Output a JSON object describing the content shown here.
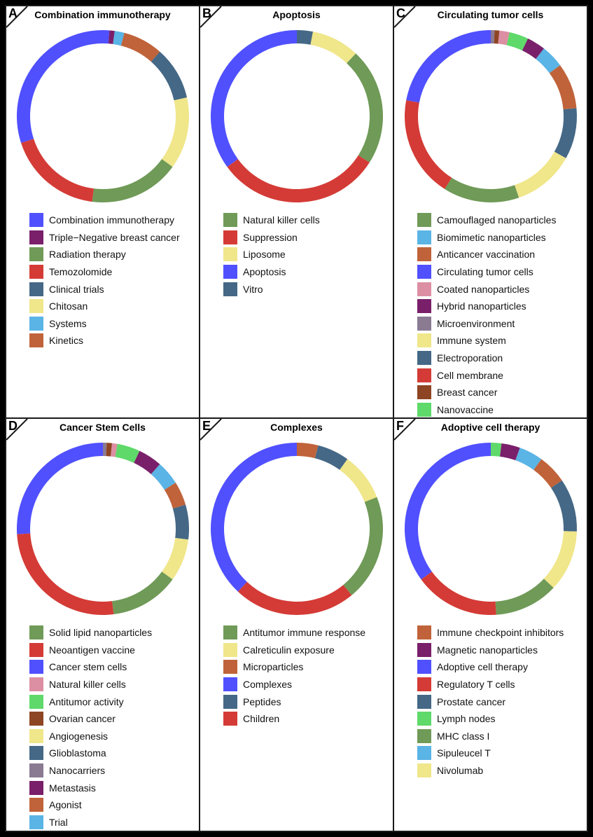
{
  "chart_data": [
    {
      "panel": "A",
      "type": "pie",
      "title": "Combination immunotherapy",
      "slices": [
        {
          "name": "Combination immunotherapy",
          "color": "#5050ff",
          "value": 1.2
        },
        {
          "name": "Triple−Negative breast cancer",
          "color": "#7a1f6a",
          "value": 1
        },
        {
          "name": "Systems",
          "color": "#5ab4e5",
          "value": 1.8
        },
        {
          "name": "Kinetics",
          "color": "#c0633a",
          "value": 7.5
        },
        {
          "name": "Clinical trials",
          "color": "#456886",
          "value": 10
        },
        {
          "name": "Chitosan",
          "color": "#f0e68a",
          "value": 13.5
        },
        {
          "name": "Radiation therapy",
          "color": "#6f9a57",
          "value": 17
        },
        {
          "name": "Temozolomide",
          "color": "#d43b36",
          "value": 18
        },
        {
          "name": "Combination immunotherapy",
          "color": "#5050ff",
          "value": 30
        }
      ],
      "legend": [
        {
          "name": "Combination immunotherapy",
          "color": "#5050ff"
        },
        {
          "name": "Triple−Negative breast cancer",
          "color": "#7a1f6a"
        },
        {
          "name": "Radiation therapy",
          "color": "#6f9a57"
        },
        {
          "name": "Temozolomide",
          "color": "#d43b36"
        },
        {
          "name": "Clinical trials",
          "color": "#456886"
        },
        {
          "name": "Chitosan",
          "color": "#f0e68a"
        },
        {
          "name": "Systems",
          "color": "#5ab4e5"
        },
        {
          "name": "Kinetics",
          "color": "#c0633a"
        }
      ]
    },
    {
      "panel": "B",
      "type": "pie",
      "title": "Apoptosis",
      "slices": [
        {
          "name": "Vitro",
          "color": "#456886",
          "value": 3
        },
        {
          "name": "Liposome",
          "color": "#f0e68a",
          "value": 9
        },
        {
          "name": "Natural killer cells",
          "color": "#6f9a57",
          "value": 22
        },
        {
          "name": "Suppression",
          "color": "#d43b36",
          "value": 31
        },
        {
          "name": "Apoptosis",
          "color": "#5050ff",
          "value": 35
        }
      ],
      "legend": [
        {
          "name": "Natural killer cells",
          "color": "#6f9a57"
        },
        {
          "name": "Suppression",
          "color": "#d43b36"
        },
        {
          "name": "Liposome",
          "color": "#f0e68a"
        },
        {
          "name": "Apoptosis",
          "color": "#5050ff"
        },
        {
          "name": "Vitro",
          "color": "#456886"
        }
      ]
    },
    {
      "panel": "C",
      "type": "pie",
      "title": "Circulating tumor cells",
      "slices": [
        {
          "name": "Microenvironment",
          "color": "#8a7a92",
          "value": 0.7
        },
        {
          "name": "Breast cancer",
          "color": "#8e4523",
          "value": 0.9
        },
        {
          "name": "Coated nanoparticles",
          "color": "#dc8fa3",
          "value": 1.9
        },
        {
          "name": "Nanovaccine",
          "color": "#5ed96a",
          "value": 3.6
        },
        {
          "name": "Hybrid nanoparticles",
          "color": "#7a1f6a",
          "value": 3.5
        },
        {
          "name": "Biomimetic nanoparticles",
          "color": "#5ab4e5",
          "value": 4.3
        },
        {
          "name": "Anticancer vaccination",
          "color": "#c0633a",
          "value": 8.6
        },
        {
          "name": "Electroporation",
          "color": "#456886",
          "value": 9.6
        },
        {
          "name": "Immune system",
          "color": "#f0e68a",
          "value": 11.6
        },
        {
          "name": "Camouflaged nanoparticles",
          "color": "#6f9a57",
          "value": 14.3
        },
        {
          "name": "Cell membrane",
          "color": "#d43b36",
          "value": 19
        },
        {
          "name": "Circulating tumor cells",
          "color": "#5050ff",
          "value": 22
        }
      ],
      "legend": [
        {
          "name": "Camouflaged nanoparticles",
          "color": "#6f9a57"
        },
        {
          "name": "Biomimetic nanoparticles",
          "color": "#5ab4e5"
        },
        {
          "name": "Anticancer vaccination",
          "color": "#c0633a"
        },
        {
          "name": "Circulating tumor cells",
          "color": "#5050ff"
        },
        {
          "name": "Coated nanoparticles",
          "color": "#dc8fa3"
        },
        {
          "name": "Hybrid nanoparticles",
          "color": "#7a1f6a"
        },
        {
          "name": "Microenvironment",
          "color": "#8a7a92"
        },
        {
          "name": "Immune system",
          "color": "#f0e68a"
        },
        {
          "name": "Electroporation",
          "color": "#456886"
        },
        {
          "name": "Cell membrane",
          "color": "#d43b36"
        },
        {
          "name": "Breast cancer",
          "color": "#8e4523"
        },
        {
          "name": "Nanovaccine",
          "color": "#5ed96a"
        }
      ]
    },
    {
      "panel": "D",
      "type": "pie",
      "title": "Cancer Stem Cells",
      "slices": [
        {
          "name": "Nanocarriers",
          "color": "#8a7a92",
          "value": 0.7
        },
        {
          "name": "Ovarian cancer",
          "color": "#8e4523",
          "value": 1
        },
        {
          "name": "Natural killer cells",
          "color": "#dc8fa3",
          "value": 1
        },
        {
          "name": "Antitumor activity",
          "color": "#5ed96a",
          "value": 4.3
        },
        {
          "name": "Metastasis",
          "color": "#7a1f6a",
          "value": 4.5
        },
        {
          "name": "Trial",
          "color": "#5ab4e5",
          "value": 4.5
        },
        {
          "name": "Agonist",
          "color": "#c0633a",
          "value": 4.5
        },
        {
          "name": "Glioblastoma",
          "color": "#456886",
          "value": 6.5
        },
        {
          "name": "Angiogenesis",
          "color": "#f0e68a",
          "value": 8
        },
        {
          "name": "Solid lipid nanoparticles",
          "color": "#6f9a57",
          "value": 13
        },
        {
          "name": "Neoantigen vaccine",
          "color": "#d43b36",
          "value": 26
        },
        {
          "name": "Cancer stem cells",
          "color": "#5050ff",
          "value": 26
        }
      ],
      "legend": [
        {
          "name": "Solid lipid nanoparticles",
          "color": "#6f9a57"
        },
        {
          "name": "Neoantigen vaccine",
          "color": "#d43b36"
        },
        {
          "name": "Cancer stem cells",
          "color": "#5050ff"
        },
        {
          "name": "Natural killer cells",
          "color": "#dc8fa3"
        },
        {
          "name": "Antitumor activity",
          "color": "#5ed96a"
        },
        {
          "name": "Ovarian cancer",
          "color": "#8e4523"
        },
        {
          "name": "Angiogenesis",
          "color": "#f0e68a"
        },
        {
          "name": "Glioblastoma",
          "color": "#456886"
        },
        {
          "name": "Nanocarriers",
          "color": "#8a7a92"
        },
        {
          "name": "Metastasis",
          "color": "#7a1f6a"
        },
        {
          "name": "Agonist",
          "color": "#c0633a"
        },
        {
          "name": "Trial",
          "color": "#5ab4e5"
        }
      ]
    },
    {
      "panel": "E",
      "type": "pie",
      "title": "Complexes",
      "slices": [
        {
          "name": "Microparticles",
          "color": "#c0633a",
          "value": 4
        },
        {
          "name": "Peptides",
          "color": "#456886",
          "value": 6
        },
        {
          "name": "Calreticulin exposure",
          "color": "#f0e68a",
          "value": 9
        },
        {
          "name": "Antitumor immune response",
          "color": "#6f9a57",
          "value": 20
        },
        {
          "name": "Children",
          "color": "#d43b36",
          "value": 23
        },
        {
          "name": "Complexes",
          "color": "#5050ff",
          "value": 38
        }
      ],
      "legend": [
        {
          "name": "Antitumor immune response",
          "color": "#6f9a57"
        },
        {
          "name": "Calreticulin exposure",
          "color": "#f0e68a"
        },
        {
          "name": "Microparticles",
          "color": "#c0633a"
        },
        {
          "name": "Complexes",
          "color": "#5050ff"
        },
        {
          "name": "Peptides",
          "color": "#456886"
        },
        {
          "name": "Children",
          "color": "#d43b36"
        }
      ]
    },
    {
      "panel": "F",
      "type": "pie",
      "title": "Adoptive cell therapy",
      "slices": [
        {
          "name": "Lymph nodes",
          "color": "#5ed96a",
          "value": 2
        },
        {
          "name": "Magnetic nanoparticles",
          "color": "#7a1f6a",
          "value": 3.5
        },
        {
          "name": "Sipuleucel T",
          "color": "#5ab4e5",
          "value": 4.5
        },
        {
          "name": "Immune checkpoint inhibitors",
          "color": "#c0633a",
          "value": 5.5
        },
        {
          "name": "Prostate cancer",
          "color": "#456886",
          "value": 10
        },
        {
          "name": "Nivolumab",
          "color": "#f0e68a",
          "value": 11.5
        },
        {
          "name": "MHC class I",
          "color": "#6f9a57",
          "value": 12
        },
        {
          "name": "Regulatory T cells",
          "color": "#d43b36",
          "value": 16
        },
        {
          "name": "Adoptive cell therapy",
          "color": "#5050ff",
          "value": 35
        }
      ],
      "legend": [
        {
          "name": "Immune checkpoint inhibitors",
          "color": "#c0633a"
        },
        {
          "name": "Magnetic nanoparticles",
          "color": "#7a1f6a"
        },
        {
          "name": "Adoptive cell therapy",
          "color": "#5050ff"
        },
        {
          "name": "Regulatory T cells",
          "color": "#d43b36"
        },
        {
          "name": "Prostate cancer",
          "color": "#456886"
        },
        {
          "name": "Lymph nodes",
          "color": "#5ed96a"
        },
        {
          "name": "MHC class I",
          "color": "#6f9a57"
        },
        {
          "name": "Sipuleucel T",
          "color": "#5ab4e5"
        },
        {
          "name": "Nivolumab",
          "color": "#f0e68a"
        }
      ]
    }
  ]
}
